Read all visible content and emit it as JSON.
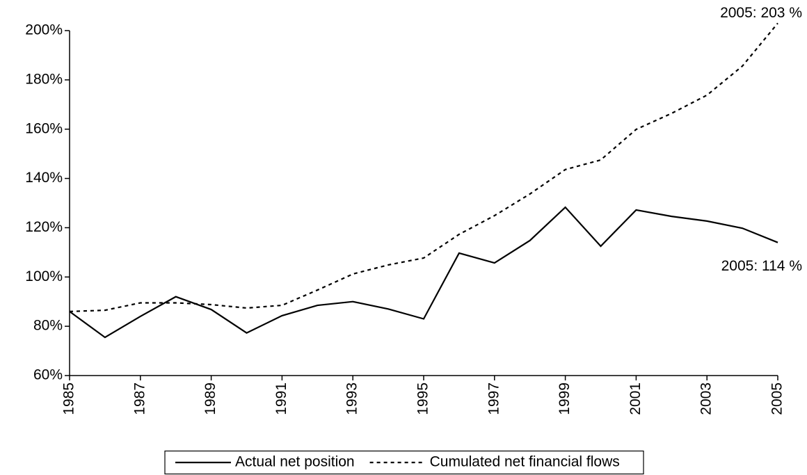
{
  "chart_data": {
    "type": "line",
    "x": [
      1985,
      1986,
      1987,
      1988,
      1989,
      1990,
      1991,
      1992,
      1993,
      1994,
      1995,
      1996,
      1997,
      1998,
      1999,
      2000,
      2001,
      2002,
      2003,
      2004,
      2005
    ],
    "series": [
      {
        "name": "Actual net position",
        "color": "#000000",
        "dash": "solid",
        "values": [
          86,
          75.5,
          84,
          92,
          86.8,
          77.3,
          84.3,
          88.5,
          90,
          87,
          83,
          109.7,
          105.7,
          114.8,
          128.3,
          112.5,
          127.2,
          124.6,
          122.7,
          119.8,
          114
        ]
      },
      {
        "name": "Cumulated net financial flows",
        "color": "#000000",
        "dash": "dotted",
        "values": [
          86,
          86.5,
          89.5,
          89.5,
          88.8,
          87.4,
          88.5,
          94.7,
          101.2,
          104.9,
          107.7,
          117.3,
          124.9,
          133.7,
          143.6,
          147.5,
          159.9,
          166.4,
          173.8,
          185.6,
          203
        ]
      }
    ],
    "annotations": [
      "2005: 203 %",
      "2005: 114 %"
    ],
    "xlim": [
      1985,
      2005
    ],
    "xticks": [
      1985,
      1987,
      1989,
      1991,
      1993,
      1995,
      1997,
      1999,
      2001,
      2003,
      2005
    ],
    "ylim": [
      60,
      200
    ],
    "yticks": [
      {
        "value": 60,
        "label": "60%"
      },
      {
        "value": 80,
        "label": "80%"
      },
      {
        "value": 100,
        "label": "100%"
      },
      {
        "value": 120,
        "label": "120%"
      },
      {
        "value": 140,
        "label": "140%"
      },
      {
        "value": 160,
        "label": "160%"
      },
      {
        "value": 180,
        "label": "180%"
      },
      {
        "value": 200,
        "label": "200%"
      }
    ],
    "grid": false,
    "legend": "bottom"
  }
}
